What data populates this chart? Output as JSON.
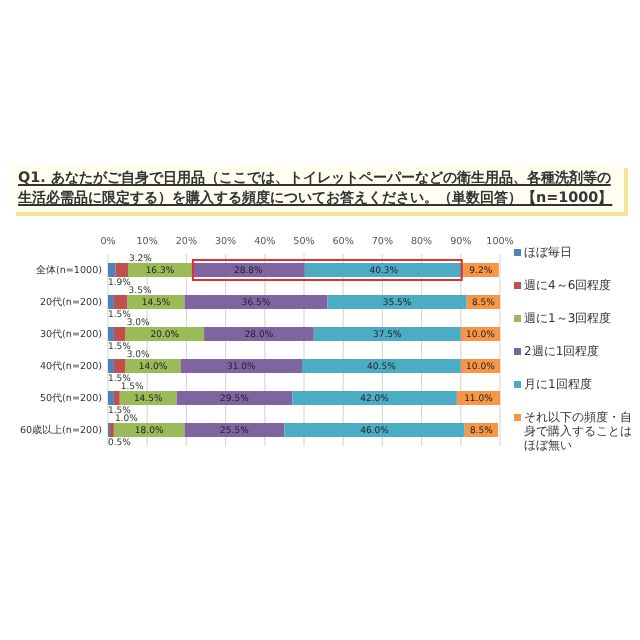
{
  "chart_data": {
    "type": "bar",
    "orientation": "horizontal",
    "stacked": true,
    "title": "Q1. あなたがご自身で日用品（ここでは、トイレットペーパーなどの衛生用品、各種洗剤等の生活必需品に限定する）を購入する頻度についてお答えください。（単数回答）【n=1000】",
    "categories": [
      "全体(n=1000)",
      "20代(n=200)",
      "30代(n=200)",
      "40代(n=200)",
      "50代(n=200)",
      "60歳以上(n=200)"
    ],
    "series": [
      {
        "name": "ほぼ毎日",
        "color": "#4f81bd",
        "values": [
          1.9,
          1.5,
          1.5,
          1.5,
          1.5,
          0.5
        ],
        "value_labels": [
          "1.9%",
          "1.5%",
          "1.5%",
          "1.5%",
          "1.5%",
          "0.5%"
        ]
      },
      {
        "name": "週に4～6回程度",
        "color": "#c0504d",
        "values": [
          3.2,
          3.5,
          3.0,
          3.0,
          1.5,
          1.0
        ],
        "value_labels": [
          "3.2%",
          "3.5%",
          "3.0%",
          "3.0%",
          "1.5%",
          "1.0%"
        ]
      },
      {
        "name": "週に1～3回程度",
        "color": "#9bbb59",
        "values": [
          16.3,
          14.5,
          20.0,
          14.0,
          14.5,
          18.0
        ],
        "value_labels": [
          "16.3%",
          "14.5%",
          "20.0%",
          "14.0%",
          "14.5%",
          "18.0%"
        ]
      },
      {
        "name": "2週に1回程度",
        "color": "#8064a2",
        "values": [
          28.8,
          36.5,
          28.0,
          31.0,
          29.5,
          25.5
        ],
        "value_labels": [
          "28.8%",
          "36.5%",
          "28.0%",
          "31.0%",
          "29.5%",
          "25.5%"
        ]
      },
      {
        "name": "月に1回程度",
        "color": "#4bacc6",
        "values": [
          40.3,
          35.5,
          37.5,
          40.5,
          42.0,
          46.0
        ],
        "value_labels": [
          "40.3%",
          "35.5%",
          "37.5%",
          "40.5%",
          "42.0%",
          "46.0%"
        ]
      },
      {
        "name": "それ以下の頻度・自身で購入することはほぼ無い",
        "color": "#f79646",
        "values": [
          9.2,
          8.5,
          10.0,
          10.0,
          11.0,
          8.5
        ],
        "value_labels": [
          "9.2%",
          "8.5%",
          "10.0%",
          "10.0%",
          "11.0%",
          "8.5%"
        ]
      }
    ],
    "xlim": [
      0,
      100
    ],
    "xticks": [
      {
        "value": 0,
        "label": "0%"
      },
      {
        "value": 10,
        "label": "10%"
      },
      {
        "value": 20,
        "label": "20%"
      },
      {
        "value": 30,
        "label": "30%"
      },
      {
        "value": 40,
        "label": "40%"
      },
      {
        "value": 50,
        "label": "50%"
      },
      {
        "value": 60,
        "label": "60%"
      },
      {
        "value": 70,
        "label": "70%"
      },
      {
        "value": 80,
        "label": "80%"
      },
      {
        "value": 90,
        "label": "90%"
      },
      {
        "value": 100,
        "label": "100%"
      }
    ],
    "grid": "x",
    "legend": "right"
  }
}
